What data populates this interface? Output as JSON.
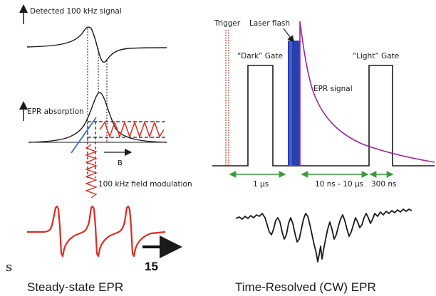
{
  "left_panel": {
    "detected_signal_label": "Detected 100 kHz signal",
    "epr_absorption_label": "EPR absorption",
    "field_axis_label": "B",
    "field_modulation_label": "100 kHz field modulation",
    "caption": "Steady-state EPR"
  },
  "right_panel": {
    "trigger_label": "Trigger",
    "laser_flash_label": "Laser flash",
    "dark_gate_label": "“Dark” Gate",
    "light_gate_label": "“Light” Gate",
    "epr_signal_label": "EPR signal",
    "interval_1_label": "1 µs",
    "interval_2_label": "10 ns - 10 µs",
    "interval_3_label": "300 ns",
    "caption": "Time-Resolved (CW) EPR"
  },
  "footer": {
    "stray_letter": "s",
    "slide_number": "15"
  },
  "colors": {
    "red_trace": "#e02a1f",
    "laser_blue": "#2a3fb0",
    "epr_decay": "#a0249a",
    "gate_arrow_green": "#3a9a3a",
    "tangent_blue": "#3b6fc9",
    "trigger_red": "#c0392b"
  }
}
